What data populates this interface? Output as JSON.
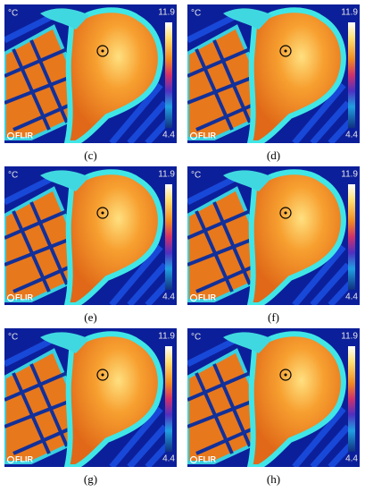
{
  "panels": [
    {
      "label": "(c)",
      "unit": "°C",
      "max": "11.9",
      "min": "4.4",
      "brand": "FLIR"
    },
    {
      "label": "(d)",
      "unit": "°C",
      "max": "11.9",
      "min": "4.4",
      "brand": "FLIR"
    },
    {
      "label": "(e)",
      "unit": "°C",
      "max": "11.9",
      "min": "4.4",
      "brand": "FLIR"
    },
    {
      "label": "(f)",
      "unit": "°C",
      "max": "11.9",
      "min": "4.4",
      "brand": "FLIR"
    },
    {
      "label": "(g)",
      "unit": "°C",
      "max": "11.9",
      "min": "4.4",
      "brand": "FLIR"
    },
    {
      "label": "(h)",
      "unit": "°C",
      "max": "11.9",
      "min": "4.4",
      "brand": "FLIR"
    }
  ]
}
